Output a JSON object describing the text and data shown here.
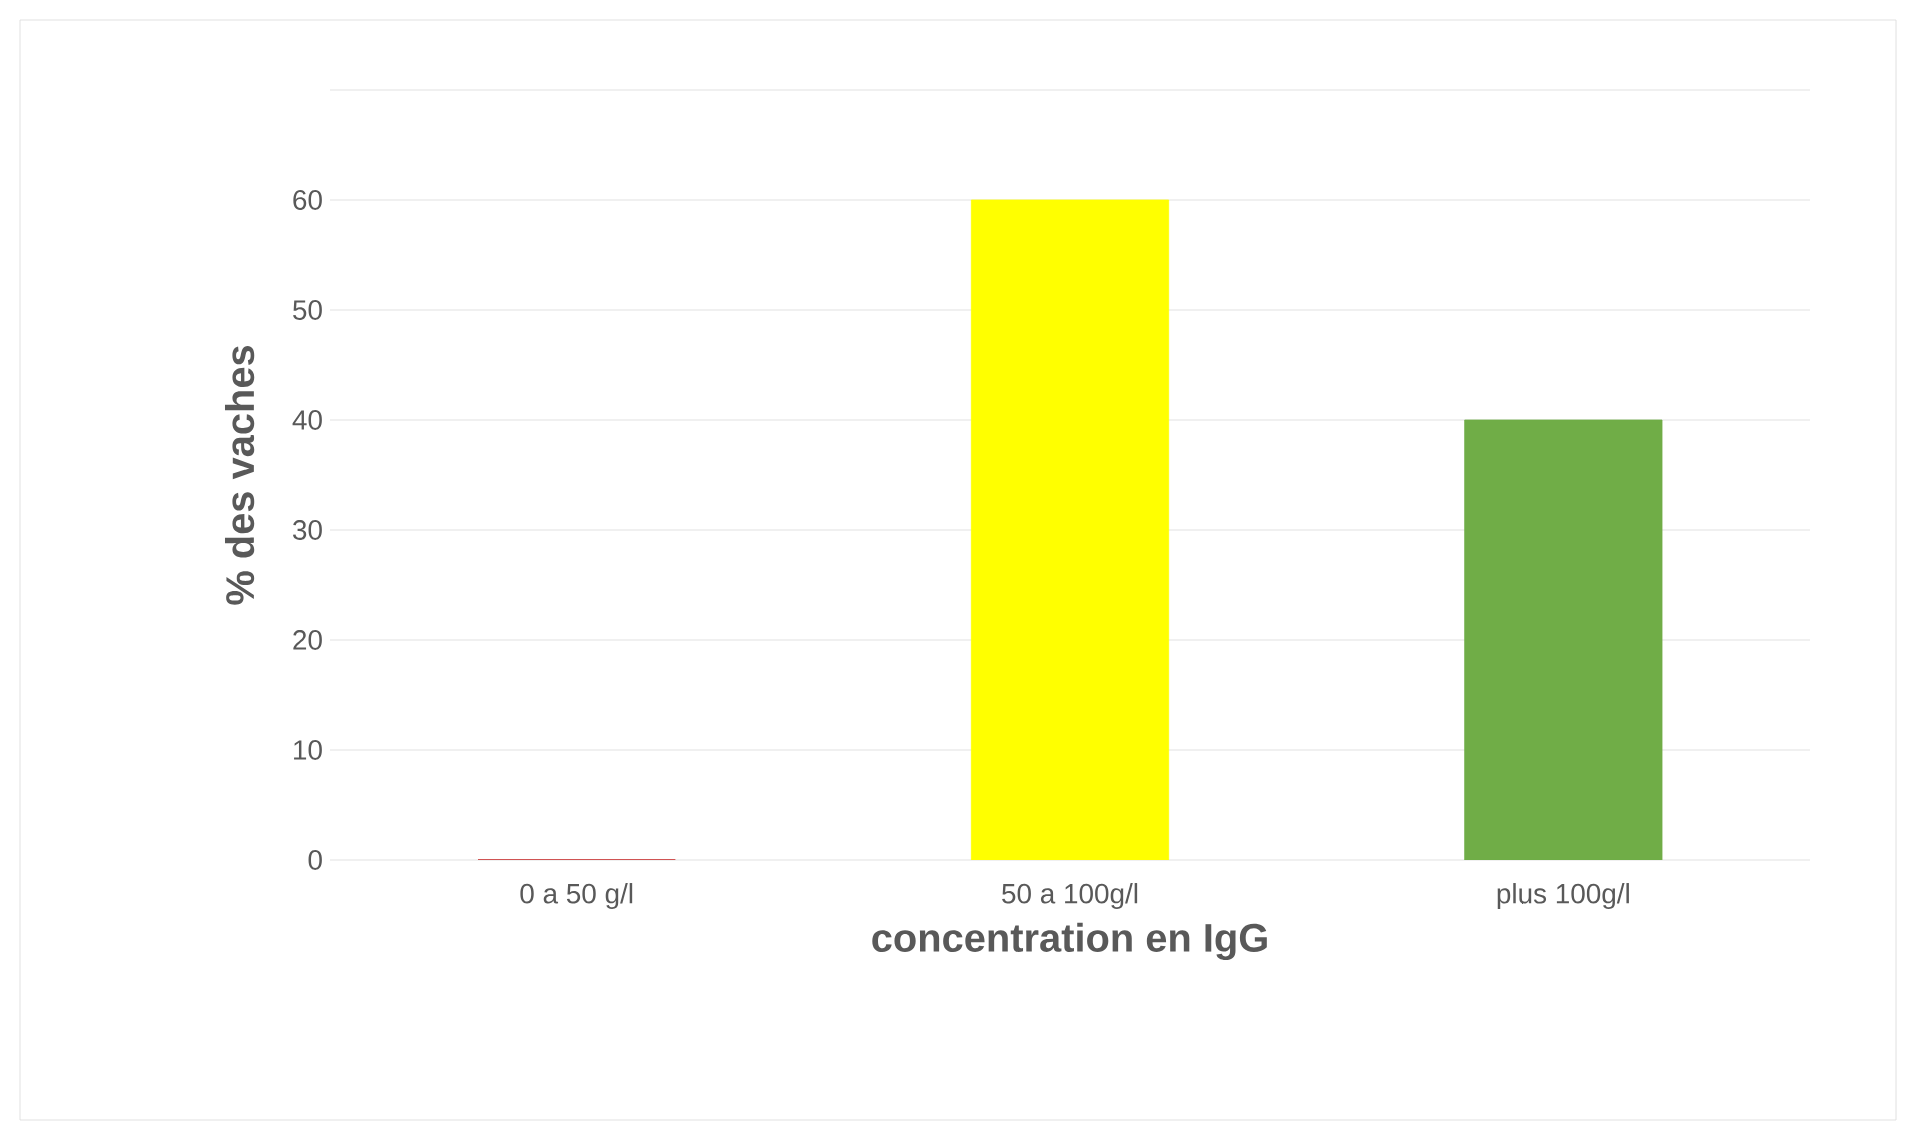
{
  "chart_data": {
    "type": "bar",
    "xlabel": "concentration en IgG",
    "ylabel": "% des vaches",
    "categories": [
      "0 a 50 g/l",
      "50 a 100g/l",
      "plus 100g/l"
    ],
    "values": [
      0,
      60,
      40
    ],
    "colors": [
      "#c00000",
      "#ffff00",
      "#70ad47"
    ],
    "ylim": [
      0,
      70
    ],
    "yticks": [
      0,
      10,
      20,
      30,
      40,
      50,
      60,
      {
        "value": 70,
        "label": null
      }
    ],
    "grid": "y"
  }
}
